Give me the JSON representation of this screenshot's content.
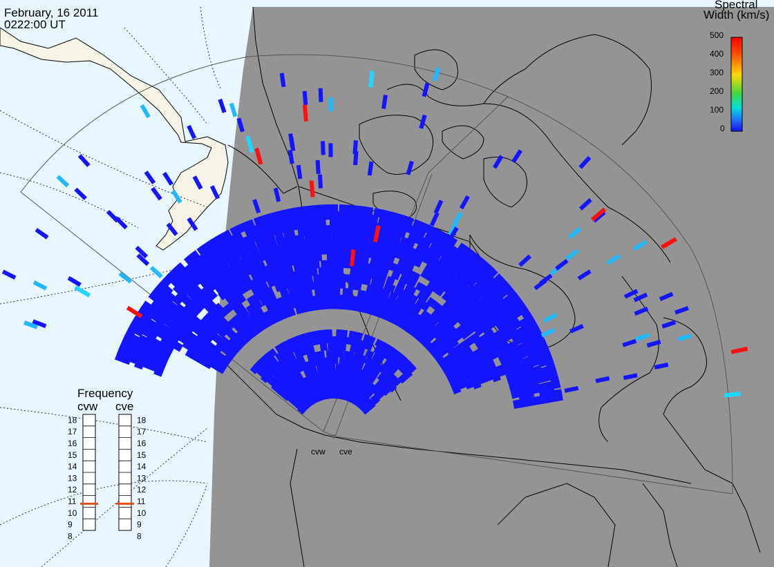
{
  "header": {
    "date": "February, 16 2011",
    "time": "0222:00 UT"
  },
  "colorbar": {
    "title_line1": "Spectral",
    "title_line2": "Width (km/s)",
    "ticks": [
      "500",
      "400",
      "300",
      "200",
      "100",
      "0"
    ],
    "colors": [
      "#ff0000",
      "#ff8000",
      "#ffd800",
      "#40d840",
      "#00e0e0",
      "#2060ff",
      "#1010ff"
    ]
  },
  "frequency": {
    "title": "Frequency",
    "radars": [
      "cvw",
      "cve"
    ],
    "levels": [
      "18",
      "17",
      "16",
      "15",
      "14",
      "13",
      "12",
      "11",
      "10",
      "9",
      "8"
    ],
    "cvw_value": 10.8,
    "cve_value": 10.8
  },
  "map": {
    "ocean_color": "#e8f6ff",
    "land_light_color": "#f6f4e6",
    "night_shade_color": "#949494",
    "echo_color": "#1414ff",
    "site_labels": [
      "cvw",
      "cve"
    ]
  }
}
